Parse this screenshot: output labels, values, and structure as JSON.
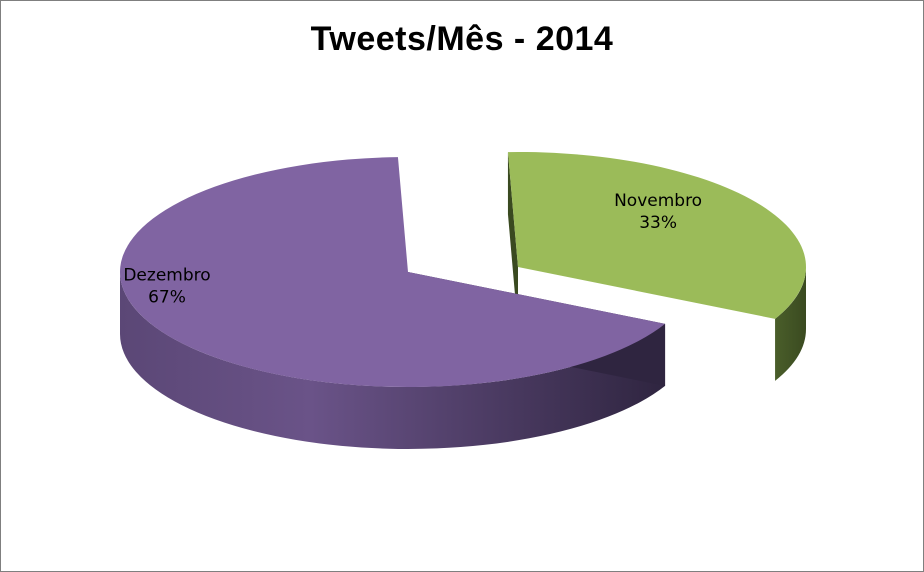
{
  "chart_data": {
    "type": "pie",
    "style": "3d-exploded",
    "title": "Tweets/Mês - 2014",
    "categories": [
      "Dezembro",
      "Novembro"
    ],
    "values": [
      67,
      33
    ],
    "unit": "%",
    "labels": [
      {
        "category": "Dezembro",
        "percent_text": "67%"
      },
      {
        "category": "Novembro",
        "percent_text": "33%"
      }
    ],
    "colors": {
      "Dezembro": {
        "top": "#8064a2",
        "side_light": "#6a5388",
        "side_dark": "#2f2540"
      },
      "Novembro": {
        "top": "#9bbb59",
        "side_light": "#4a5e2a",
        "side_dark": "#3a4a20"
      }
    },
    "legend": "none"
  }
}
